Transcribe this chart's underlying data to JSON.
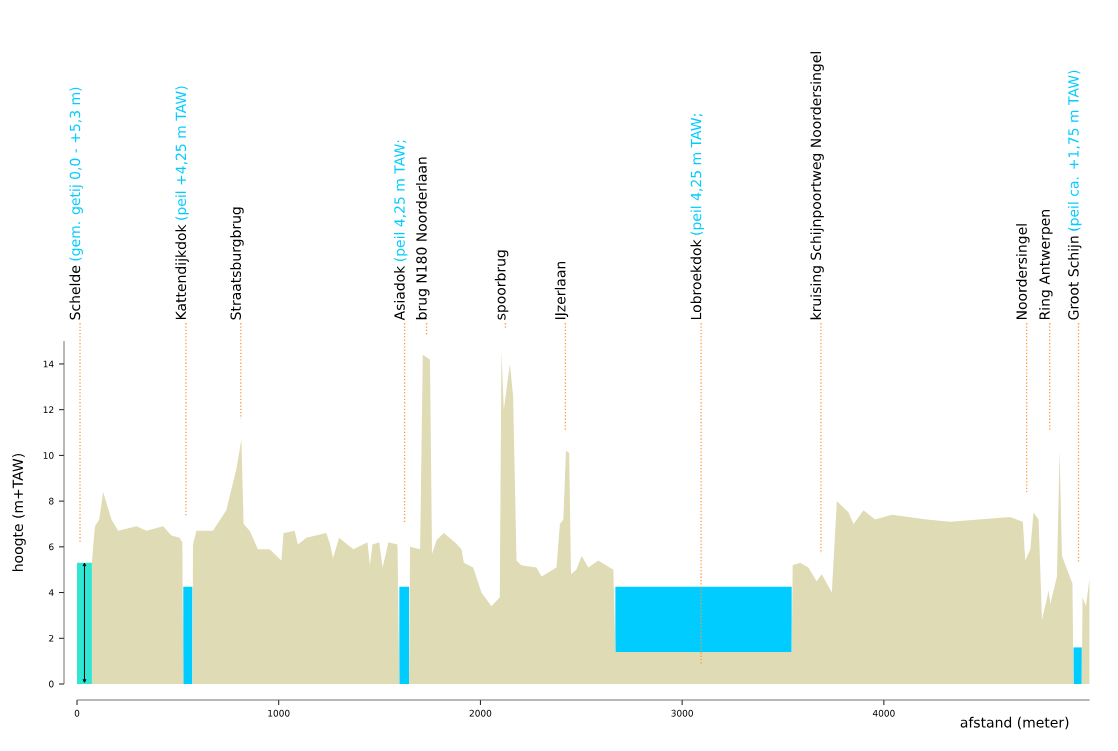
{
  "chart_data": {
    "type": "area",
    "xlabel": "afstand (meter)",
    "ylabel": "hoogte (m+TAW)",
    "xlim": [
      0,
      5020
    ],
    "ylim": [
      0,
      15
    ],
    "xticks": [
      0,
      1000,
      2000,
      3000,
      4000
    ],
    "yticks": [
      0,
      2,
      4,
      6,
      8,
      10,
      12,
      14
    ],
    "grid": false,
    "series": [
      {
        "color": "#2ee6d2",
        "x": [
          0,
          74
        ],
        "values": [
          5.3,
          5.3
        ]
      },
      {
        "color": "#00ccff",
        "x": [
          527,
          572
        ],
        "values": [
          4.25,
          4.25
        ]
      },
      {
        "color": "#00ccff",
        "x": [
          1598,
          1646
        ],
        "values": [
          4.25,
          4.25
        ]
      },
      {
        "color": "#00ccff",
        "x": [
          2669,
          3543
        ],
        "values": [
          4.25,
          4.25
        ]
      },
      {
        "color": "#00ccff",
        "x": [
          4940,
          4981
        ],
        "values": [
          1.6,
          1.6
        ]
      },
      {
        "color": "#dfdcb5",
        "x": [
          74,
          80,
          89,
          110,
          130,
          150,
          171,
          204,
          295,
          344,
          427,
          468,
          509,
          522,
          527,
          572,
          575,
          592,
          674,
          740,
          790,
          815,
          826,
          856,
          897,
          955,
          1013,
          1024,
          1079,
          1095,
          1137,
          1236,
          1255,
          1269,
          1299,
          1370,
          1440,
          1452,
          1465,
          1498,
          1515,
          1544,
          1589,
          1598,
          1646,
          1651,
          1701,
          1714,
          1750,
          1760,
          1783,
          1819,
          1873,
          1906,
          1918,
          1964,
          2005,
          2055,
          2096,
          2104,
          2116,
          2146,
          2162,
          2179,
          2203,
          2278,
          2303,
          2377,
          2394,
          2411,
          2424,
          2440,
          2449,
          2475,
          2502,
          2535,
          2584,
          2659,
          2669,
          3543,
          3548,
          3585,
          3626,
          3667,
          3692,
          3742,
          3767,
          3825,
          3850,
          3899,
          3957,
          4040,
          4213,
          4329,
          4626,
          4689,
          4701,
          4726,
          4742,
          4767,
          4784,
          4817,
          4825,
          4858,
          4871,
          4883,
          4935,
          4940,
          4981,
          4985,
          5002,
          5019
        ],
        "values": [
          5.3,
          6.0,
          6.9,
          7.2,
          8.4,
          7.8,
          7.2,
          6.7,
          6.9,
          6.7,
          6.9,
          6.5,
          6.4,
          6.2,
          0,
          0,
          6.1,
          6.7,
          6.7,
          7.6,
          9.4,
          10.7,
          7.0,
          6.7,
          5.9,
          5.9,
          5.4,
          6.6,
          6.7,
          6.1,
          6.4,
          6.6,
          6.1,
          5.5,
          6.4,
          5.9,
          6.2,
          5.2,
          6.1,
          6.2,
          5.1,
          6.2,
          6.1,
          0,
          0,
          6.0,
          5.9,
          14.4,
          14.2,
          5.7,
          6.3,
          6.6,
          6.2,
          5.9,
          5.3,
          5.1,
          4.0,
          3.4,
          3.8,
          14.6,
          12.0,
          14.0,
          12.6,
          5.4,
          5.2,
          5.1,
          4.7,
          5.1,
          7.0,
          7.2,
          10.2,
          10.1,
          4.8,
          5.0,
          5.6,
          5.1,
          5.4,
          5.0,
          1.4,
          1.4,
          5.2,
          5.3,
          5.1,
          4.5,
          4.8,
          4.0,
          8.0,
          7.5,
          7.0,
          7.6,
          7.2,
          7.4,
          7.2,
          7.1,
          7.3,
          7.1,
          5.4,
          5.9,
          7.5,
          7.2,
          2.8,
          4.1,
          3.5,
          4.7,
          10.2,
          5.6,
          4.4,
          0,
          0,
          3.8,
          3.4,
          4.6
        ]
      }
    ],
    "ref_lines": [
      {
        "axis": "x",
        "value": 15,
        "label": "Schelde",
        "color": "#ff9a40",
        "line_style": "dotted"
      },
      {
        "axis": "x",
        "value": 540,
        "label": "Kattendijkdok",
        "color": "#ff9a40",
        "line_style": "dotted"
      },
      {
        "axis": "x",
        "value": 812,
        "label": "Straatsburgbrug",
        "color": "#ff9a40",
        "line_style": "dotted"
      },
      {
        "axis": "x",
        "value": 1624,
        "label": "Asiadok",
        "color": "#ff9a40",
        "line_style": "dotted"
      },
      {
        "axis": "x",
        "value": 1733,
        "label": "brug N180 Noorderlaan",
        "color": "#ff9a40",
        "line_style": "dotted"
      },
      {
        "axis": "x",
        "value": 2124,
        "label": "spoorbrug",
        "color": "#ff9a40",
        "line_style": "dotted"
      },
      {
        "axis": "x",
        "value": 2421,
        "label": "IJzerlaan",
        "color": "#ff9a40",
        "line_style": "dotted"
      },
      {
        "axis": "x",
        "value": 3094,
        "label": "Lobroekdok",
        "color": "#ff9a40",
        "line_style": "dotted"
      },
      {
        "axis": "x",
        "value": 3688,
        "label": "kruising Schijnpoortweg Noordersingel",
        "color": "#ff9a40",
        "line_style": "dotted"
      },
      {
        "axis": "x",
        "value": 4708,
        "label": "Noordersingel",
        "color": "#ff9a40",
        "line_style": "dotted"
      },
      {
        "axis": "x",
        "value": 4822,
        "label": "Ring Antwerpen",
        "color": "#ff9a40",
        "line_style": "dotted"
      },
      {
        "axis": "x",
        "value": 4965,
        "label": "Groot Schijn",
        "color": "#ff9a40",
        "line_style": "dotted"
      }
    ],
    "annotations": [
      "(gem. getij 0,0 - +5,3 m)",
      "(peil +4,25 m TAW)",
      "(peil 4,25 m TAW;",
      "(peil 4,25 m TAW;",
      "(peil ca. +1,75 m TAW)"
    ]
  }
}
